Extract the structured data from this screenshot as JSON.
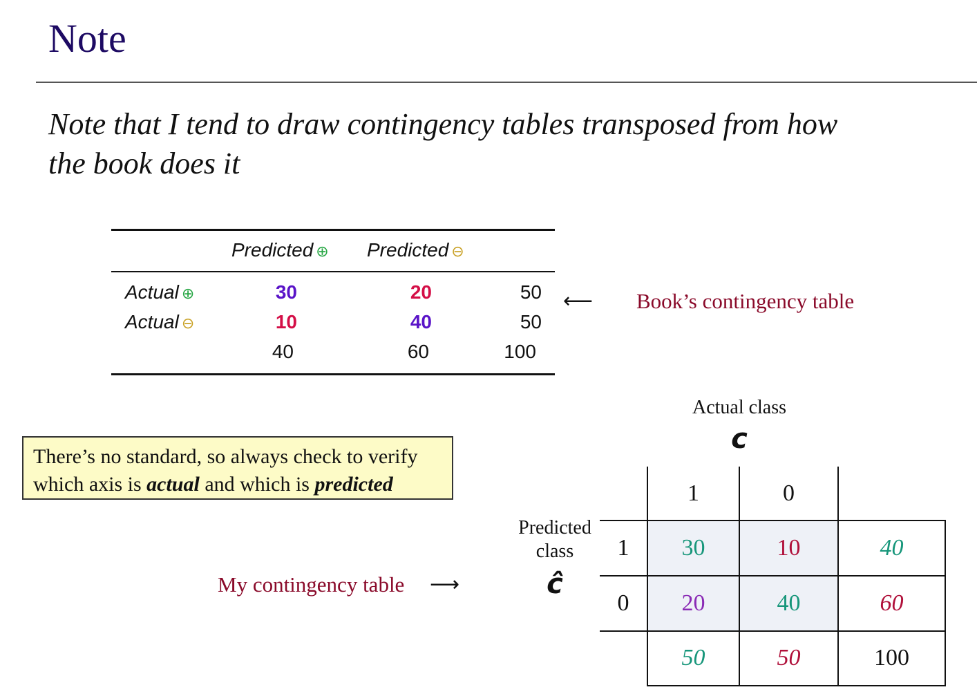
{
  "slide": {
    "title": "Note",
    "intro_line1": "Note that I tend to draw contingency tables transposed from how",
    "intro_line2": "the book does it"
  },
  "book_table": {
    "label": "Book’s contingency table",
    "col_headers": [
      "Predicted",
      "Predicted"
    ],
    "col_symbols": [
      "⊕",
      "⊖"
    ],
    "row_headers": [
      "Actual",
      "Actual"
    ],
    "row_symbols": [
      "⊕",
      "⊖"
    ],
    "rows": [
      [
        "30",
        "20",
        "50"
      ],
      [
        "10",
        "40",
        "50"
      ],
      [
        "40",
        "60",
        "100"
      ]
    ],
    "colors": {
      "plus": "#28a745",
      "minus": "#c9a227",
      "diag": "#5a14c8",
      "offdiag": "#d40f47"
    }
  },
  "note_box": {
    "line1": "There’s no standard, so always check to verify",
    "line2_a": "which axis is ",
    "line2_actual": "actual",
    "line2_b": "  and which is ",
    "line2_predicted": "predicted"
  },
  "my_table": {
    "label": "My contingency table",
    "col_title": "Actual class",
    "col_symbol": "c",
    "row_title_1": "Predicted",
    "row_title_2": "class",
    "row_symbol": "ĉ",
    "col_headers": [
      "1",
      "0"
    ],
    "row_headers": [
      "1",
      "0"
    ],
    "cells": [
      [
        "30",
        "10",
        "40"
      ],
      [
        "20",
        "40",
        "60"
      ],
      [
        "50",
        "50",
        "100"
      ]
    ],
    "colors": {
      "green": "#16967a",
      "red": "#b0103a",
      "purple": "#8a2ab5",
      "cell_bg": "#eef1f7"
    }
  },
  "arrows": {
    "left_arrow": "⟵",
    "right_arrow": "⟶"
  }
}
